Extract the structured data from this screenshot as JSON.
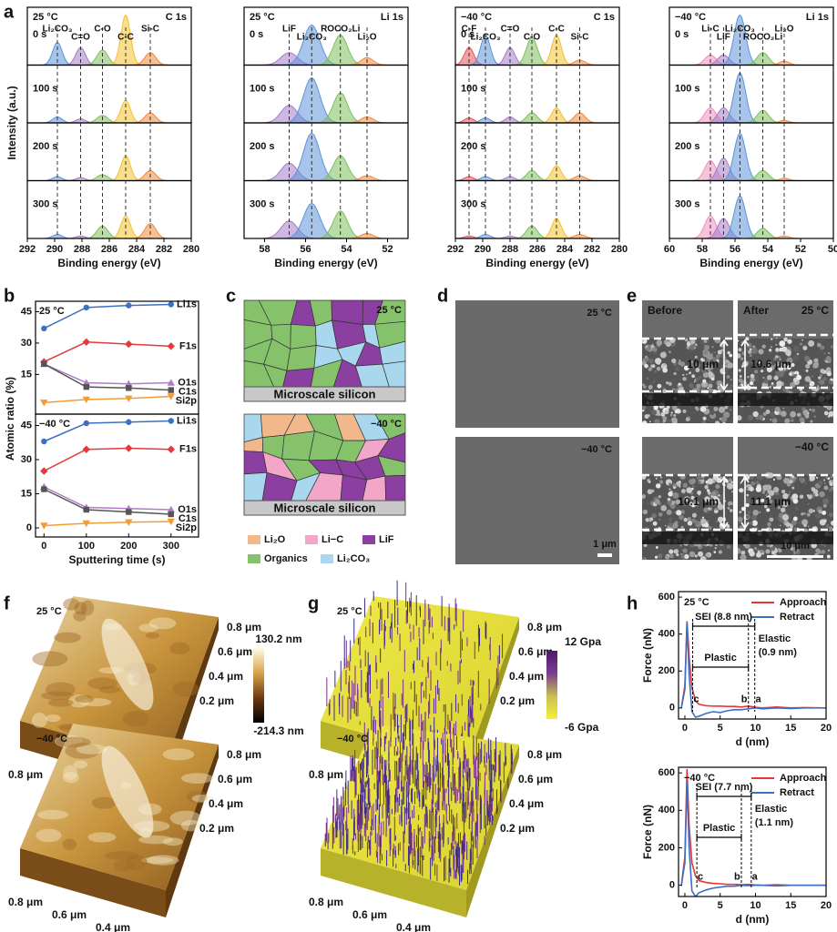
{
  "panel_labels": [
    "a",
    "b",
    "c",
    "d",
    "e",
    "f",
    "g",
    "h"
  ],
  "xps": {
    "ylabel": "Intensity (a.u.)",
    "xlabel": "Binding energy (eV)",
    "rows": [
      "0 s",
      "100 s",
      "200 s",
      "300 s"
    ],
    "ylim": [
      0,
      1.15
    ],
    "plots": [
      {
        "temp": "25 °C",
        "core": "C 1s",
        "xlim": [
          292,
          280
        ],
        "xticks": [
          292,
          290,
          288,
          286,
          284,
          282,
          280
        ],
        "components": [
          {
            "name": "Li₂CO₃",
            "color": "#5f93d8",
            "center": 289.8,
            "width": 0.7,
            "heights": [
              0.45,
              0.12,
              0.08,
              0.08
            ]
          },
          {
            "name": "C=O",
            "color": "#a57cc6",
            "center": 288.1,
            "width": 0.7,
            "heights": [
              0.35,
              0.08,
              0.06,
              0.05
            ]
          },
          {
            "name": "C-O",
            "color": "#7fbf5e",
            "center": 286.5,
            "width": 0.8,
            "heights": [
              0.3,
              0.15,
              0.12,
              0.25
            ]
          },
          {
            "name": "C-C",
            "color": "#f2c230",
            "center": 284.8,
            "width": 0.7,
            "heights": [
              1,
              0.45,
              0.5,
              0.45
            ]
          },
          {
            "name": "Si-C",
            "color": "#f08a3c",
            "center": 283.0,
            "width": 0.8,
            "heights": [
              0.25,
              0.2,
              0.2,
              0.3
            ]
          }
        ]
      },
      {
        "temp": "25 °C",
        "core": "Li 1s",
        "xlim": [
          59,
          51
        ],
        "xticks": [
          58,
          56,
          54,
          52
        ],
        "components": [
          {
            "name": "LiF",
            "color": "#a57cc6",
            "center": 56.8,
            "width": 0.8,
            "heights": [
              0.25,
              0.35,
              0.35,
              0.35
            ]
          },
          {
            "name": "Li₂CO₃",
            "color": "#5f93d8",
            "center": 55.7,
            "width": 0.8,
            "heights": [
              0.8,
              0.9,
              0.95,
              0.7
            ]
          },
          {
            "name": "ROCO₂Li",
            "color": "#7fbf5e",
            "center": 54.3,
            "width": 0.7,
            "heights": [
              0.6,
              0.6,
              0.5,
              0.55
            ]
          },
          {
            "name": "Li₂O",
            "color": "#f08a3c",
            "center": 53.0,
            "width": 0.6,
            "heights": [
              0.15,
              0.12,
              0.1,
              0.1
            ]
          }
        ]
      },
      {
        "temp": "−40 °C",
        "core": "C 1s",
        "xlim": [
          292,
          280
        ],
        "xticks": [
          292,
          290,
          288,
          286,
          284,
          282,
          280
        ],
        "components": [
          {
            "name": "C-F",
            "color": "#e8535c",
            "center": 291.0,
            "width": 0.7,
            "heights": [
              0.35,
              0.1,
              0.08,
              0.05
            ]
          },
          {
            "name": "Li₂CO₃",
            "color": "#5f93d8",
            "center": 289.8,
            "width": 0.7,
            "heights": [
              0.6,
              0.1,
              0.08,
              0.08
            ]
          },
          {
            "name": "C=O",
            "color": "#a57cc6",
            "center": 288.0,
            "width": 0.7,
            "heights": [
              0.35,
              0.12,
              0.08,
              0.05
            ]
          },
          {
            "name": "C-O",
            "color": "#7fbf5e",
            "center": 286.4,
            "width": 0.8,
            "heights": [
              0.55,
              0.2,
              0.2,
              0.25
            ]
          },
          {
            "name": "C-C",
            "color": "#f2c230",
            "center": 284.6,
            "width": 0.7,
            "heights": [
              0.6,
              0.3,
              0.3,
              0.4
            ]
          },
          {
            "name": "Si-C",
            "color": "#f08a3c",
            "center": 282.9,
            "width": 0.8,
            "heights": [
              0.1,
              0.2,
              0.1,
              0.08
            ]
          }
        ]
      },
      {
        "temp": "−40 °C",
        "core": "Li 1s",
        "xlim": [
          60,
          50
        ],
        "xticks": [
          60,
          58,
          56,
          54,
          52,
          50
        ],
        "components": [
          {
            "name": "Li-C",
            "color": "#ef8fc0",
            "center": 57.5,
            "width": 0.7,
            "heights": [
              0.2,
              0.3,
              0.4,
              0.45
            ]
          },
          {
            "name": "LiF",
            "color": "#a57cc6",
            "center": 56.7,
            "width": 0.7,
            "heights": [
              0.2,
              0.3,
              0.45,
              0.4
            ]
          },
          {
            "name": "Li₂CO₃",
            "color": "#5f93d8",
            "center": 55.7,
            "width": 0.7,
            "heights": [
              1,
              1,
              0.95,
              0.85
            ]
          },
          {
            "name": "ROCO₂Li",
            "color": "#7fbf5e",
            "center": 54.3,
            "width": 0.7,
            "heights": [
              0.25,
              0.25,
              0.2,
              0.2
            ]
          },
          {
            "name": "Li₂O",
            "color": "#f08a3c",
            "center": 53.0,
            "width": 0.6,
            "heights": [
              0.08,
              0.05,
              0.05,
              0.05
            ]
          }
        ]
      }
    ]
  },
  "atomic": {
    "type": "line",
    "xlabel": "Sputtering time (s)",
    "ylabel": "Atomic ratio (%)",
    "x": [
      0,
      100,
      200,
      300
    ],
    "xlim": [
      -20,
      365
    ],
    "xticks": [
      0,
      100,
      200,
      300
    ],
    "ylim": [
      -4,
      50
    ],
    "panels": [
      {
        "label": "25 °C",
        "yticks": [
          15,
          30,
          45
        ],
        "series": [
          {
            "name": "Li1s",
            "color": "#3d6fc4",
            "values": [
              37,
              47,
              48,
              48.5
            ]
          },
          {
            "name": "F1s",
            "color": "#e5393b",
            "values": [
              21,
              30.5,
              29.5,
              28.5
            ]
          },
          {
            "name": "O1s",
            "color": "#b07cc6",
            "values": [
              20,
              11,
              10.5,
              11
            ]
          },
          {
            "name": "C1s",
            "color": "#555555",
            "values": [
              20,
              9,
              8.5,
              7.5
            ]
          },
          {
            "name": "Si2p",
            "color": "#f39c34",
            "values": [
              1.5,
              3,
              3.5,
              4.5
            ]
          }
        ]
      },
      {
        "label": "−40 °C",
        "yticks": [
          0,
          15,
          30,
          45
        ],
        "series": [
          {
            "name": "Li1s",
            "color": "#3d6fc4",
            "values": [
              38,
              46,
              46.5,
              47
            ]
          },
          {
            "name": "F1s",
            "color": "#e5393b",
            "values": [
              25,
              34.5,
              35,
              34.5
            ]
          },
          {
            "name": "O1s",
            "color": "#b07cc6",
            "values": [
              18,
              9,
              8.5,
              8
            ]
          },
          {
            "name": "C1s",
            "color": "#555555",
            "values": [
              17,
              8,
              7,
              6
            ]
          },
          {
            "name": "Si2p",
            "color": "#f39c34",
            "values": [
              1,
              2,
              2.5,
              2.8
            ]
          }
        ]
      }
    ]
  },
  "schematic": {
    "temps": [
      "25 °C",
      "−40 °C"
    ],
    "substrate": "Microscale silicon",
    "legend": [
      {
        "name": "Li₂O",
        "color": "#f1b98b"
      },
      {
        "name": "Li−C",
        "color": "#f2a6c8"
      },
      {
        "name": "LiF",
        "color": "#8b3fa0"
      },
      {
        "name": "Organics",
        "color": "#85c26b"
      },
      {
        "name": "Li₂CO₃",
        "color": "#a9d8ee"
      }
    ]
  },
  "sem": {
    "temps": [
      "25 °C",
      "−40 °C"
    ],
    "scale": "1 μm"
  },
  "cross": {
    "before": "Before",
    "after": "After",
    "temps": [
      "25 °C",
      "−40 °C"
    ],
    "thickness": [
      [
        "10 μm",
        "10.6 μm"
      ],
      [
        "10.1 μm",
        "11.1 μm"
      ]
    ],
    "scale": "10 μm"
  },
  "afm": {
    "temps": [
      "25 °C",
      "−40 °C"
    ],
    "axis_ticks": [
      "0.8 μm",
      "0.6 μm",
      "0.4 μm",
      "0.2 μm"
    ],
    "colorbar": [
      "130.2 nm",
      "-214.3 nm"
    ]
  },
  "modulus": {
    "temps": [
      "25 °C",
      "−40 °C"
    ],
    "axis_ticks": [
      "0.8 μm",
      "0.6 μm",
      "0.4 μm",
      "0.2 μm"
    ],
    "colorbar": [
      "12 Gpa",
      "-6 Gpa"
    ]
  },
  "force": {
    "type": "line",
    "xlabel": "d (nm)",
    "ylabel": "Force (nN)",
    "xlim": [
      -0.9,
      20
    ],
    "xticks": [
      0,
      5,
      10,
      15,
      20
    ],
    "ylim": [
      -60,
      630
    ],
    "yticks": [
      0,
      200,
      400,
      600
    ],
    "x": [
      -0.5,
      0,
      0.3,
      0.6,
      1,
      1.5,
      2,
      3,
      4,
      5,
      6,
      7,
      8,
      9,
      10,
      11,
      13,
      15,
      17,
      20
    ],
    "panels": [
      {
        "temp": "25 °C",
        "sei": "SEI (8.8 nm)",
        "plastic": "Plastic",
        "elastic": [
          "Elastic",
          "(0.9 nm)"
        ],
        "points": [
          "c",
          "b",
          "a"
        ],
        "series": [
          {
            "name": "Approach",
            "color": "#e8343a",
            "values": [
              0,
              120,
              470,
              280,
              110,
              40,
              20,
              12,
              10,
              10,
              8,
              8,
              5,
              10,
              3,
              0,
              5,
              0,
              2,
              0
            ]
          },
          {
            "name": "Retract",
            "color": "#3d6fc4",
            "values": [
              0,
              100,
              460,
              180,
              -20,
              -50,
              -45,
              -30,
              -20,
              -25,
              -15,
              -10,
              -10,
              -5,
              0,
              -5,
              0,
              -3,
              0,
              0
            ]
          }
        ]
      },
      {
        "temp": "−40 °C",
        "sei": "SEI (7.7 nm)",
        "plastic": "Plastic",
        "elastic": [
          "Elastic",
          "(1.1 nm)"
        ],
        "points": [
          "c",
          "b",
          "a"
        ],
        "series": [
          {
            "name": "Approach",
            "color": "#e8343a",
            "values": [
              0,
              150,
              620,
              320,
              120,
              50,
              25,
              15,
              10,
              8,
              5,
              5,
              3,
              5,
              2,
              0,
              3,
              0,
              0,
              0
            ]
          },
          {
            "name": "Retract",
            "color": "#3d6fc4",
            "values": [
              0,
              120,
              550,
              200,
              -30,
              -60,
              -40,
              -25,
              -15,
              -10,
              -5,
              -5,
              0,
              -2,
              0,
              0,
              -3,
              0,
              0,
              0
            ]
          }
        ]
      }
    ]
  }
}
